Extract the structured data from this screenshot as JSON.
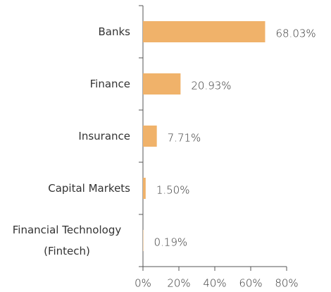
{
  "chart_data": {
    "type": "barh",
    "categories": [
      "Banks",
      "Finance",
      "Insurance",
      "Capital Markets",
      "Financial Technology (Fintech)"
    ],
    "values": [
      68.03,
      20.93,
      7.71,
      1.5,
      0.19
    ],
    "value_labels": [
      "68.03%",
      "20.93%",
      "7.71%",
      "1.50%",
      "0.19%"
    ],
    "color": "#f0b26a",
    "xlim": [
      0,
      80
    ],
    "xticks": [
      {
        "value": 0,
        "label": "0%"
      },
      {
        "value": 20,
        "label": "20%"
      },
      {
        "value": 40,
        "label": "40%"
      },
      {
        "value": 60,
        "label": "60%"
      },
      {
        "value": 80,
        "label": "80%"
      }
    ]
  }
}
